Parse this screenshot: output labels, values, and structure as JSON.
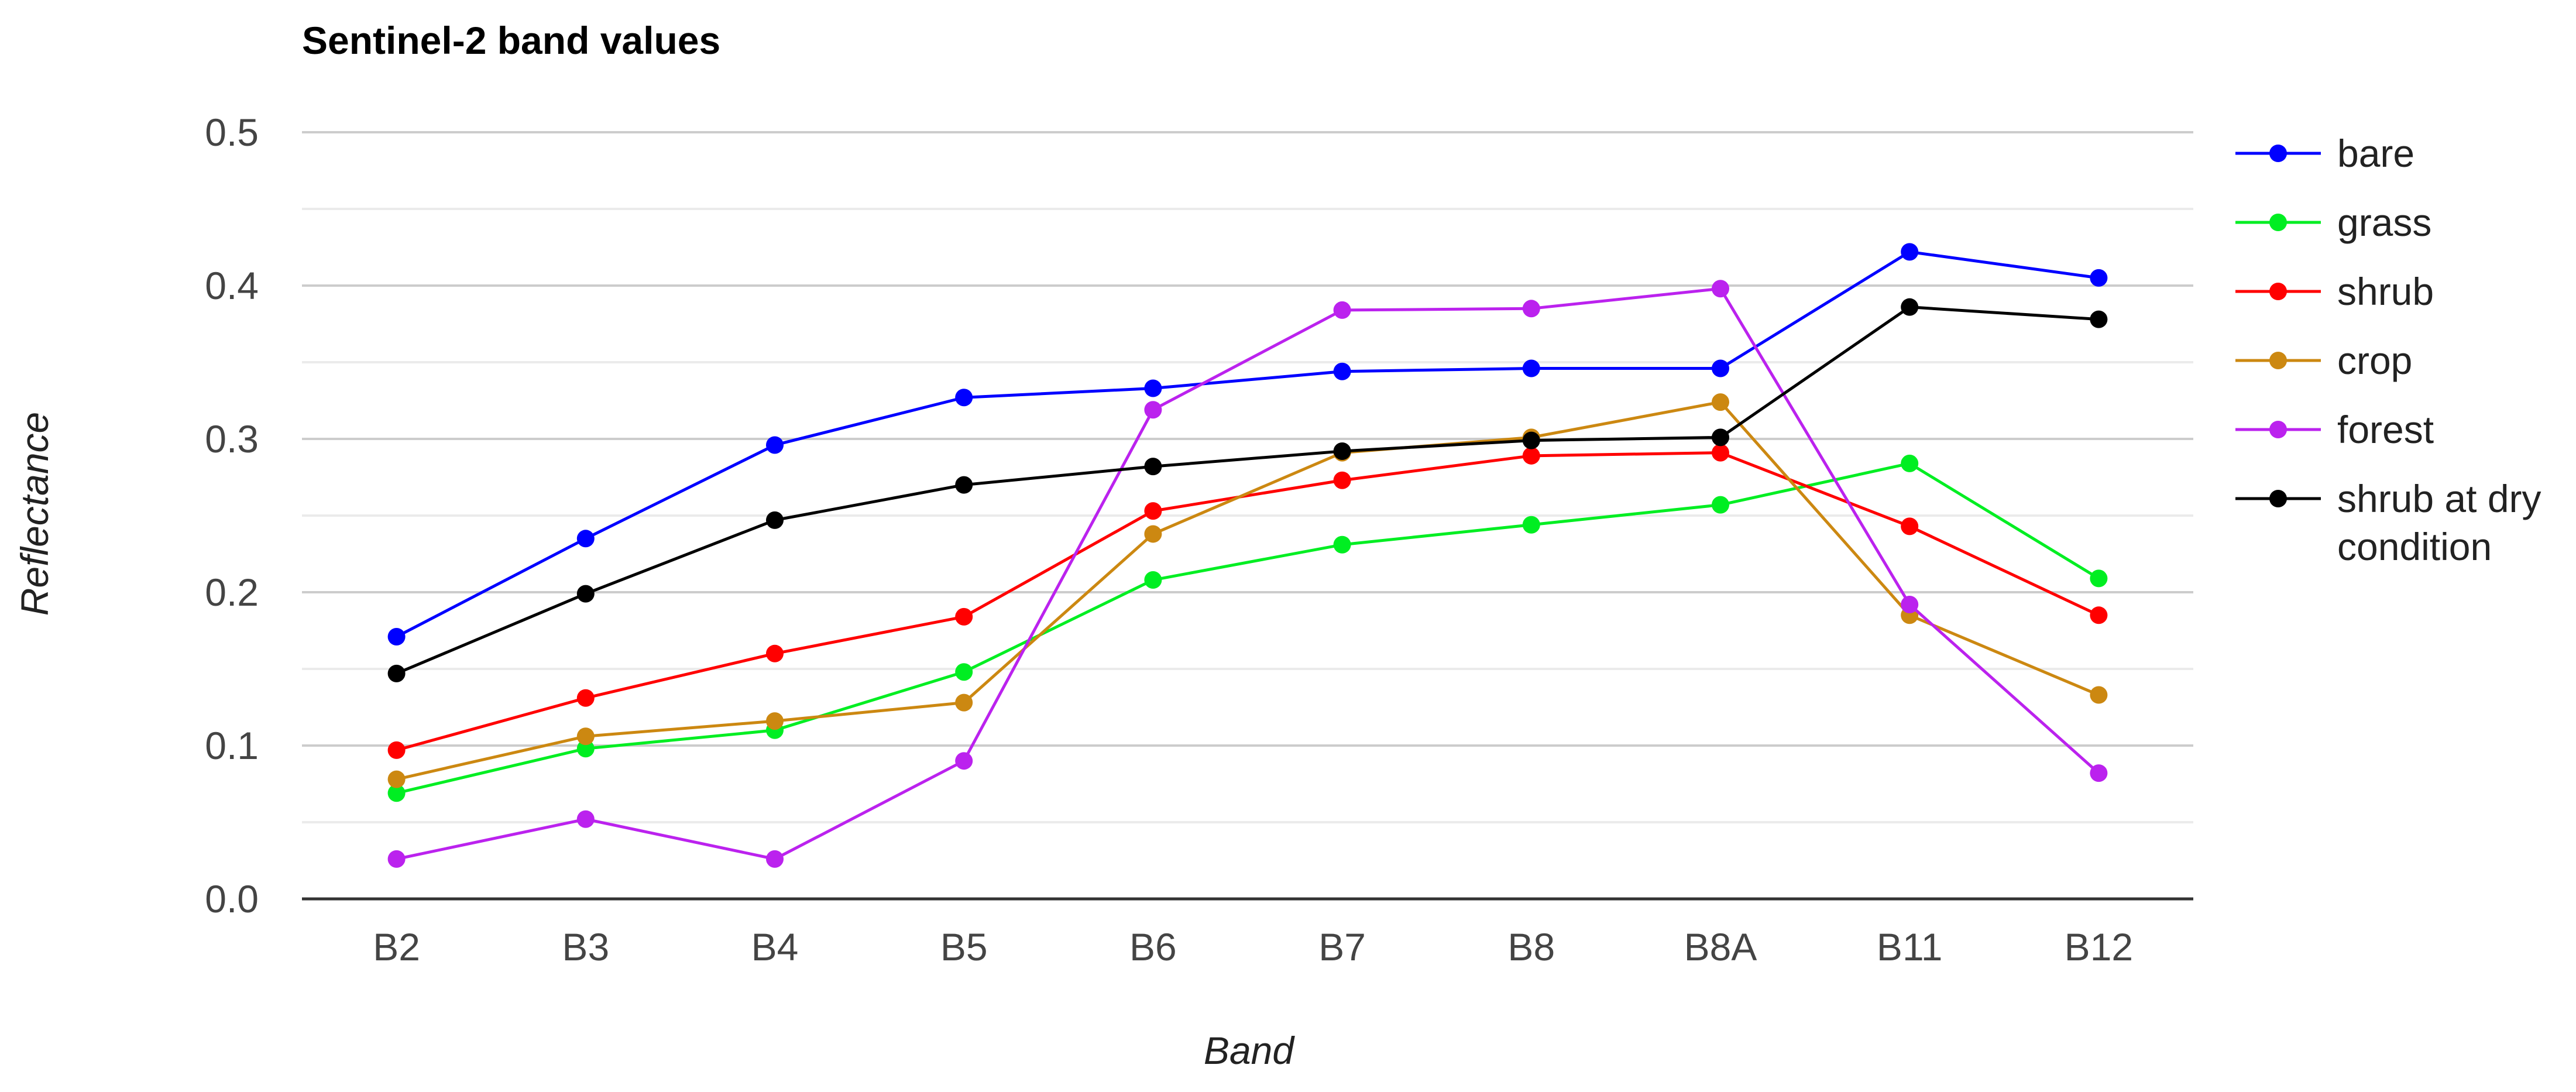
{
  "chart_data": {
    "type": "line",
    "title": "Sentinel-2 band values",
    "xlabel": "Band",
    "ylabel": "Reflectance",
    "ylim": [
      0,
      0.5
    ],
    "yticks": [
      0.0,
      0.1,
      0.2,
      0.3,
      0.4,
      0.5
    ],
    "ytick_labels": [
      "0.0",
      "0.1",
      "0.2",
      "0.3",
      "0.4",
      "0.5"
    ],
    "grid": true,
    "legend_position": "right",
    "categories": [
      "B2",
      "B3",
      "B4",
      "B5",
      "B6",
      "B7",
      "B8",
      "B8A",
      "B11",
      "B12"
    ],
    "series": [
      {
        "name": "bare",
        "color": "#0000ff",
        "values": [
          0.171,
          0.235,
          0.296,
          0.327,
          0.333,
          0.344,
          0.346,
          0.346,
          0.422,
          0.405
        ]
      },
      {
        "name": "grass",
        "color": "#00ee22",
        "values": [
          0.069,
          0.098,
          0.11,
          0.148,
          0.208,
          0.231,
          0.244,
          0.257,
          0.284,
          0.209
        ]
      },
      {
        "name": "shrub",
        "color": "#ff0000",
        "values": [
          0.097,
          0.131,
          0.16,
          0.184,
          0.253,
          0.273,
          0.289,
          0.291,
          0.243,
          0.185
        ]
      },
      {
        "name": "crop",
        "color": "#cc8811",
        "values": [
          0.078,
          0.106,
          0.116,
          0.128,
          0.238,
          0.291,
          0.301,
          0.324,
          0.185,
          0.133
        ]
      },
      {
        "name": "forest",
        "color": "#bb22ee",
        "values": [
          0.026,
          0.052,
          0.026,
          0.09,
          0.319,
          0.384,
          0.385,
          0.398,
          0.192,
          0.082
        ]
      },
      {
        "name": "shrub at dry condition",
        "color": "#000000",
        "legend_lines": [
          "shrub at dry",
          "condition"
        ],
        "values": [
          0.147,
          0.199,
          0.247,
          0.27,
          0.282,
          0.292,
          0.299,
          0.301,
          0.386,
          0.378
        ]
      }
    ]
  }
}
